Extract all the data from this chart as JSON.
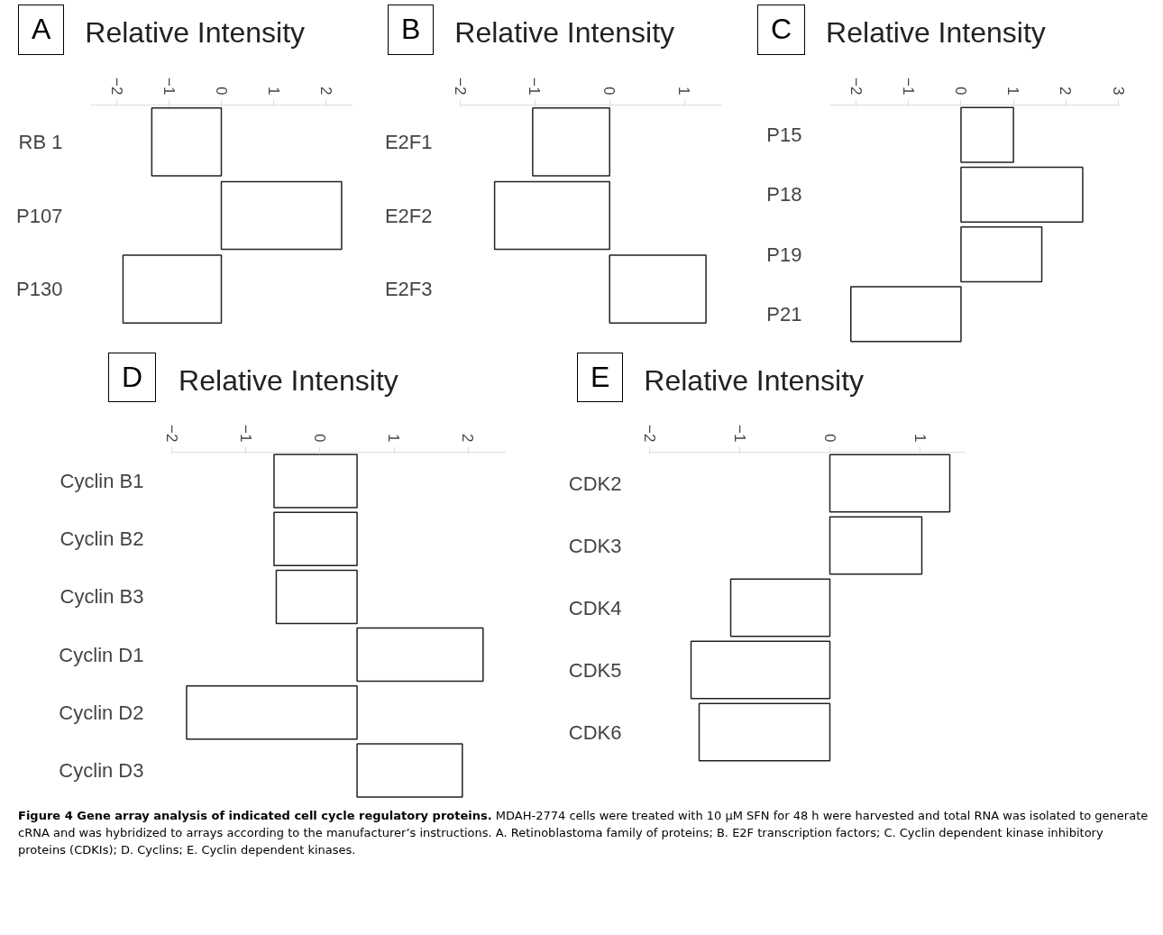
{
  "chart_data": [
    {
      "type": "bar",
      "orientation": "horizontal",
      "title": "Relative Intensity",
      "annotations": [
        "A"
      ],
      "categories": [
        "RB 1",
        "P107",
        "P130"
      ],
      "values": [
        -1.33,
        2.3,
        -1.88
      ],
      "color": "#ffffff",
      "xlim": [
        -2.5,
        2.5
      ],
      "xticks": [
        -2,
        -1,
        0,
        1,
        2
      ],
      "grid": false
    },
    {
      "type": "bar",
      "orientation": "horizontal",
      "title": "Relative Intensity",
      "annotations": [
        "B"
      ],
      "categories": [
        "E2F1",
        "E2F2",
        "E2F3"
      ],
      "values": [
        -1.03,
        -1.54,
        1.29
      ],
      "color": "#ffffff",
      "xlim": [
        -2,
        1.5
      ],
      "xticks": [
        -2,
        -1,
        0,
        1
      ],
      "grid": false
    },
    {
      "type": "bar",
      "orientation": "horizontal",
      "title": "Relative Intensity",
      "annotations": [
        "C"
      ],
      "categories": [
        "P15",
        "P18",
        "P19",
        "P21"
      ],
      "values": [
        1.0,
        2.32,
        1.54,
        -2.1
      ],
      "color": "#ffffff",
      "xlim": [
        -2.5,
        3
      ],
      "xticks": [
        -2,
        -1,
        0,
        1,
        2,
        3
      ],
      "grid": false
    },
    {
      "type": "bar",
      "orientation": "horizontal",
      "title": "Relative Intensity",
      "annotations": [
        "D"
      ],
      "categories": [
        "Cyclin B1",
        "Cyclin B2",
        "Cyclin B3",
        "Cyclin D1",
        "Cyclin D2",
        "Cyclin D3"
      ],
      "base": [
        0.5,
        0.5,
        0.5,
        0.5,
        0.5,
        0.5
      ],
      "values": [
        -1.12,
        -1.12,
        -1.09,
        1.7,
        -2.3,
        1.42
      ],
      "color": "#ffffff",
      "xlim": [
        -2,
        2.5
      ],
      "xticks": [
        -2,
        -1,
        0,
        1,
        2
      ],
      "grid": false
    },
    {
      "type": "bar",
      "orientation": "horizontal",
      "title": "Relative Intensity",
      "annotations": [
        "E",
        "Figure 4 Gene array analysis of indicated cell cycle regulatory proteins.",
        "MDAH-2774 cells were treated with 10 μM SFN for 48 h were harvested and total RNA was isolated to generate cRNA and was hybridized to arrays according to the manufacturer’s instructions. A. Retinoblastoma family of proteins; B. E2F transcription factors; C. Cyclin dependent kinase inhibitory proteins (CDKIs); D. Cyclins; E. Cyclin dependent kinases."
      ],
      "categories": [
        "CDK2",
        "CDK3",
        "CDK4",
        "CDK5",
        "CDK6"
      ],
      "values": [
        1.33,
        1.02,
        -1.1,
        -1.54,
        -1.45
      ],
      "color": "#ffffff",
      "xlim": [
        -2,
        1.5
      ],
      "xticks": [
        -2,
        -1,
        0,
        1
      ],
      "grid": false
    }
  ]
}
